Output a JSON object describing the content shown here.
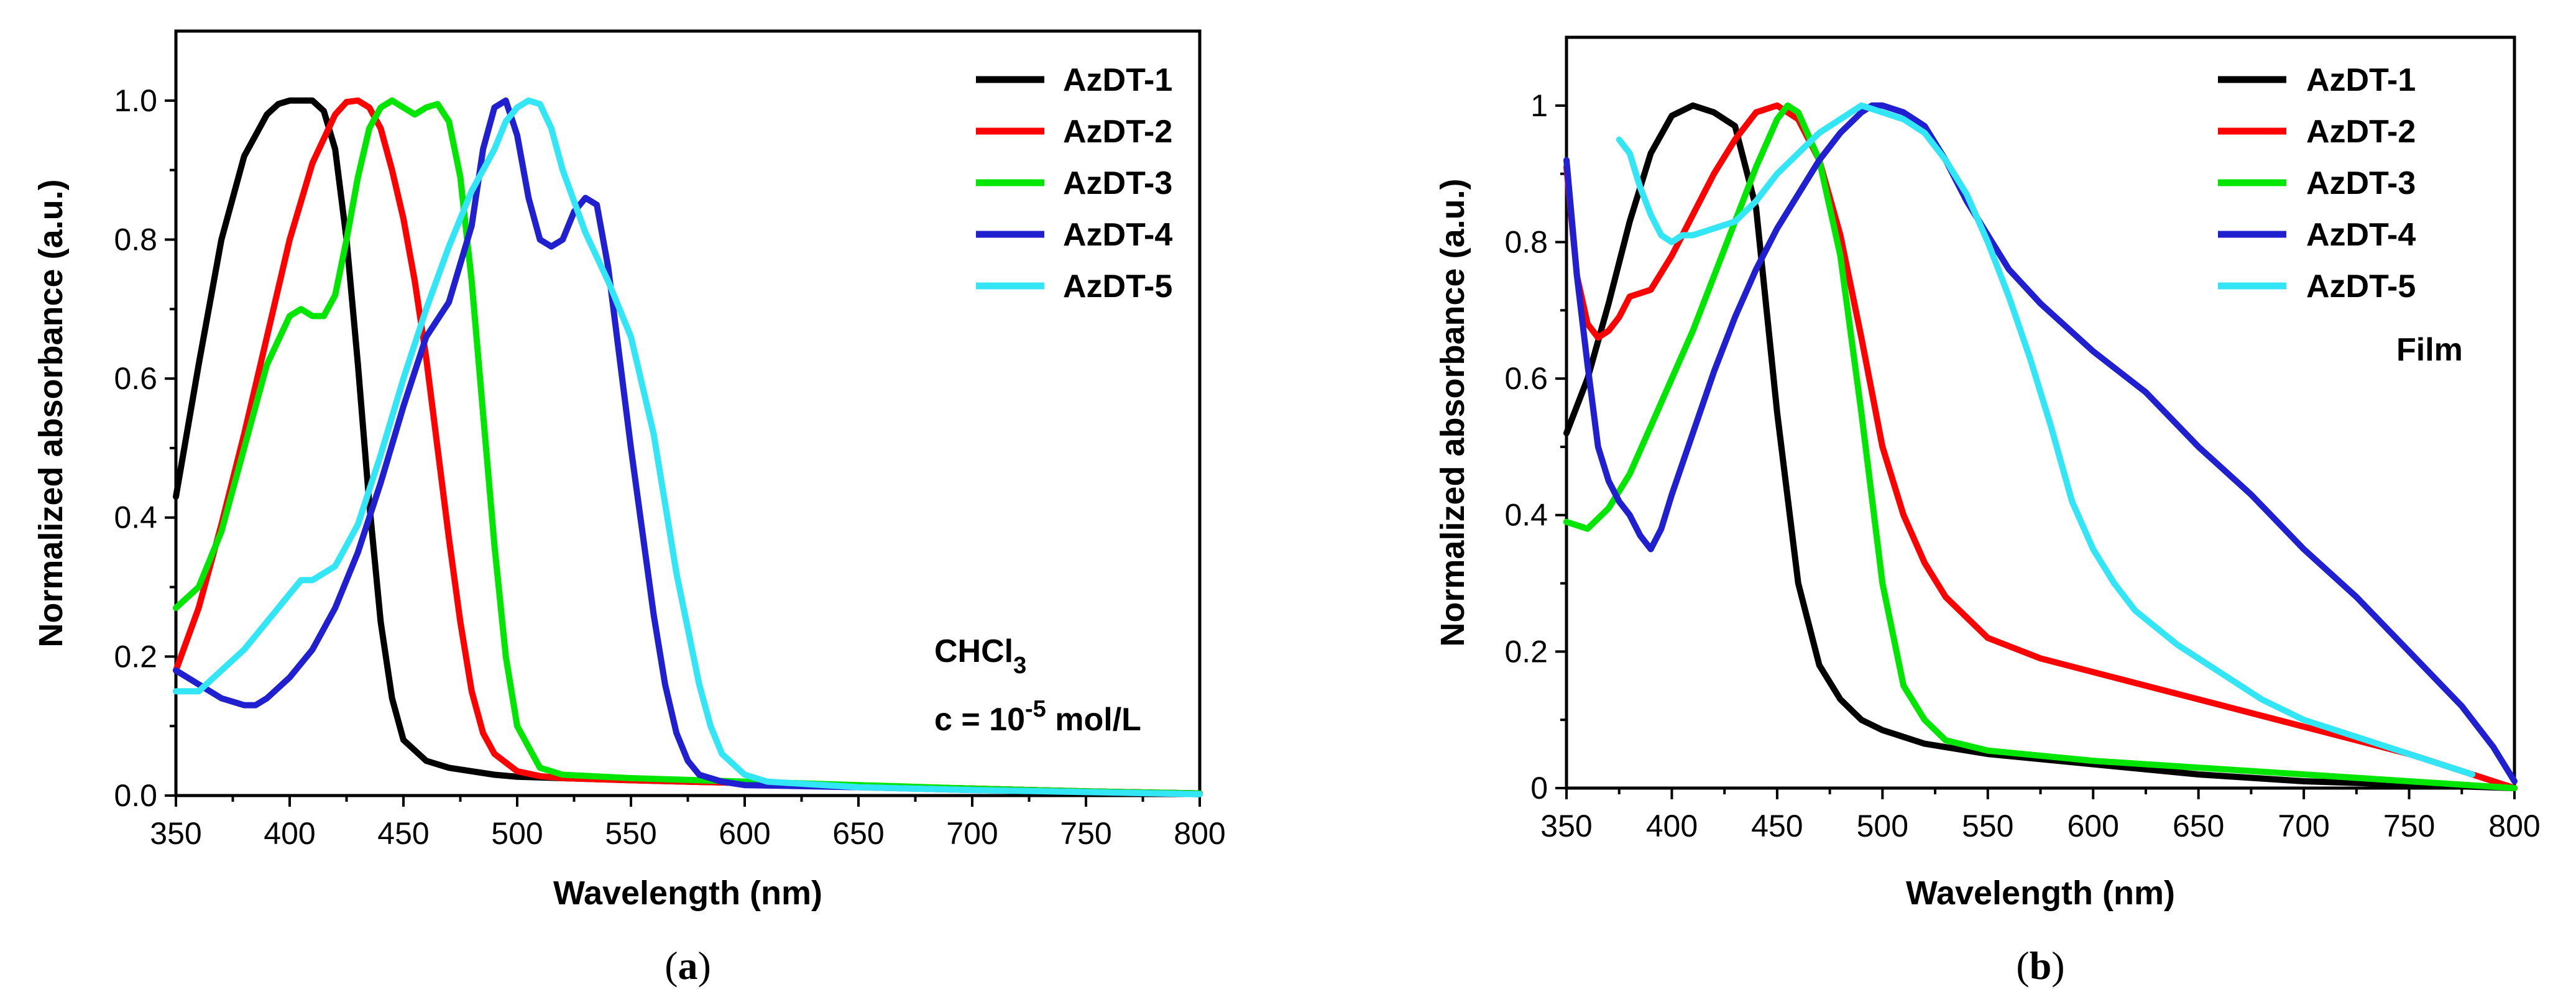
{
  "chart_data": [
    {
      "type": "line",
      "title": "",
      "xlabel": "Wavelength (nm)",
      "ylabel": "Normalized absorbance (a.u.)",
      "xlim": [
        350,
        800
      ],
      "ylim": [
        0,
        1.1
      ],
      "xticks": [
        "350",
        "400",
        "450",
        "500",
        "550",
        "600",
        "650",
        "700",
        "750",
        "800"
      ],
      "yticks": [
        "0.0",
        "0.2",
        "0.4",
        "0.6",
        "0.8",
        "1.0"
      ],
      "ytick_values": [
        0,
        0.2,
        0.4,
        0.6,
        0.8,
        1.0
      ],
      "legend_position": "top-right",
      "panel_label": {
        "open": "(",
        "letter": "a",
        "close": ")"
      },
      "annotation": {
        "solvent_main": "CHCl",
        "solvent_sub": "3",
        "conc_prefix": "c = 10",
        "conc_sup": "-5",
        "conc_suffix": " mol/L"
      },
      "series": [
        {
          "name": "AzDT-1",
          "color": "#000000",
          "x": [
            350,
            360,
            370,
            380,
            390,
            395,
            400,
            405,
            410,
            415,
            420,
            425,
            430,
            435,
            440,
            445,
            450,
            460,
            470,
            480,
            490,
            500,
            520,
            550,
            600,
            650,
            700,
            750,
            800
          ],
          "y": [
            0.43,
            0.62,
            0.8,
            0.92,
            0.98,
            0.995,
            1.0,
            1.0,
            1.0,
            0.985,
            0.93,
            0.8,
            0.62,
            0.42,
            0.25,
            0.14,
            0.08,
            0.05,
            0.04,
            0.035,
            0.03,
            0.027,
            0.025,
            0.022,
            0.018,
            0.014,
            0.01,
            0.006,
            0.003
          ]
        },
        {
          "name": "AzDT-2",
          "color": "#ff0000",
          "x": [
            350,
            360,
            370,
            380,
            390,
            400,
            410,
            420,
            425,
            430,
            435,
            440,
            445,
            450,
            455,
            460,
            465,
            470,
            475,
            480,
            485,
            490,
            500,
            510,
            520,
            550,
            600,
            650,
            700,
            750,
            800
          ],
          "y": [
            0.18,
            0.27,
            0.39,
            0.52,
            0.66,
            0.8,
            0.91,
            0.98,
            0.998,
            1.0,
            0.99,
            0.96,
            0.9,
            0.83,
            0.74,
            0.63,
            0.5,
            0.37,
            0.25,
            0.15,
            0.09,
            0.06,
            0.035,
            0.028,
            0.025,
            0.022,
            0.018,
            0.014,
            0.01,
            0.006,
            0.003
          ]
        },
        {
          "name": "AzDT-3",
          "color": "#00e600",
          "x": [
            350,
            360,
            370,
            380,
            390,
            400,
            405,
            410,
            415,
            420,
            425,
            430,
            435,
            440,
            445,
            450,
            455,
            460,
            465,
            470,
            475,
            480,
            485,
            490,
            495,
            500,
            510,
            520,
            550,
            600,
            650,
            700,
            750,
            800
          ],
          "y": [
            0.27,
            0.3,
            0.38,
            0.5,
            0.62,
            0.69,
            0.7,
            0.69,
            0.69,
            0.72,
            0.8,
            0.89,
            0.96,
            0.99,
            1.0,
            0.99,
            0.98,
            0.99,
            0.995,
            0.97,
            0.89,
            0.74,
            0.55,
            0.36,
            0.2,
            0.1,
            0.04,
            0.03,
            0.025,
            0.02,
            0.015,
            0.01,
            0.006,
            0.003
          ]
        },
        {
          "name": "AzDT-4",
          "color": "#2020d0",
          "x": [
            350,
            360,
            370,
            380,
            385,
            390,
            400,
            410,
            420,
            430,
            440,
            450,
            460,
            470,
            480,
            485,
            490,
            495,
            500,
            505,
            510,
            515,
            520,
            525,
            530,
            535,
            540,
            545,
            550,
            555,
            560,
            565,
            570,
            575,
            580,
            590,
            600,
            650,
            700,
            750,
            800
          ],
          "y": [
            0.18,
            0.16,
            0.14,
            0.13,
            0.13,
            0.14,
            0.17,
            0.21,
            0.27,
            0.35,
            0.45,
            0.56,
            0.66,
            0.71,
            0.82,
            0.93,
            0.99,
            1.0,
            0.95,
            0.86,
            0.8,
            0.79,
            0.8,
            0.84,
            0.86,
            0.85,
            0.76,
            0.63,
            0.5,
            0.38,
            0.26,
            0.16,
            0.09,
            0.05,
            0.03,
            0.02,
            0.015,
            0.012,
            0.008,
            0.005,
            0.002
          ]
        },
        {
          "name": "AzDT-5",
          "color": "#33e6f5",
          "x": [
            350,
            360,
            370,
            380,
            390,
            400,
            405,
            410,
            420,
            430,
            440,
            450,
            460,
            470,
            480,
            490,
            495,
            500,
            505,
            510,
            515,
            520,
            530,
            540,
            550,
            560,
            570,
            575,
            580,
            585,
            590,
            600,
            610,
            650,
            700,
            750,
            800
          ],
          "y": [
            0.15,
            0.15,
            0.18,
            0.21,
            0.25,
            0.29,
            0.31,
            0.31,
            0.33,
            0.39,
            0.49,
            0.6,
            0.7,
            0.79,
            0.87,
            0.93,
            0.97,
            0.99,
            1.0,
            0.995,
            0.96,
            0.9,
            0.81,
            0.74,
            0.66,
            0.52,
            0.32,
            0.24,
            0.16,
            0.1,
            0.06,
            0.03,
            0.02,
            0.012,
            0.008,
            0.005,
            0.002
          ]
        }
      ]
    },
    {
      "type": "line",
      "title": "",
      "xlabel": "Wavelength (nm)",
      "ylabel": "Normalized absorbance (a.u.)",
      "xlim": [
        350,
        800
      ],
      "ylim": [
        0,
        1.1
      ],
      "xticks": [
        "350",
        "400",
        "450",
        "500",
        "550",
        "600",
        "650",
        "700",
        "750",
        "800"
      ],
      "yticks": [
        "0",
        "0.2",
        "0.4",
        "0.6",
        "0.8",
        "1"
      ],
      "ytick_values": [
        0,
        0.2,
        0.4,
        0.6,
        0.8,
        1.0
      ],
      "legend_position": "top-right",
      "panel_label": {
        "open": "(",
        "letter": "b",
        "close": ")"
      },
      "annotation": {
        "film": "Film"
      },
      "series": [
        {
          "name": "AzDT-1",
          "color": "#000000",
          "x": [
            350,
            360,
            370,
            380,
            390,
            400,
            410,
            420,
            430,
            440,
            450,
            460,
            470,
            480,
            490,
            500,
            520,
            550,
            600,
            650,
            700,
            750,
            800
          ],
          "y": [
            0.52,
            0.6,
            0.71,
            0.83,
            0.93,
            0.985,
            1.0,
            0.99,
            0.97,
            0.85,
            0.55,
            0.3,
            0.18,
            0.13,
            0.1,
            0.085,
            0.065,
            0.05,
            0.035,
            0.02,
            0.01,
            0.005,
            0.0
          ]
        },
        {
          "name": "AzDT-2",
          "color": "#ff0000",
          "x": [
            350,
            355,
            360,
            365,
            370,
            375,
            380,
            390,
            400,
            410,
            420,
            430,
            440,
            450,
            460,
            470,
            480,
            490,
            500,
            510,
            520,
            530,
            540,
            550,
            575,
            600,
            650,
            700,
            750,
            780,
            800
          ],
          "y": [
            0.91,
            0.75,
            0.68,
            0.66,
            0.67,
            0.69,
            0.72,
            0.73,
            0.78,
            0.84,
            0.9,
            0.95,
            0.99,
            1.0,
            0.98,
            0.92,
            0.81,
            0.66,
            0.5,
            0.4,
            0.33,
            0.28,
            0.25,
            0.22,
            0.19,
            0.17,
            0.13,
            0.09,
            0.05,
            0.02,
            0.0
          ]
        },
        {
          "name": "AzDT-3",
          "color": "#00e600",
          "x": [
            350,
            360,
            370,
            380,
            390,
            400,
            410,
            420,
            430,
            440,
            450,
            455,
            460,
            470,
            480,
            490,
            500,
            510,
            520,
            530,
            550,
            600,
            650,
            700,
            750,
            800
          ],
          "y": [
            0.39,
            0.38,
            0.41,
            0.46,
            0.53,
            0.6,
            0.67,
            0.75,
            0.83,
            0.91,
            0.98,
            1.0,
            0.99,
            0.92,
            0.78,
            0.55,
            0.3,
            0.15,
            0.1,
            0.07,
            0.055,
            0.04,
            0.03,
            0.02,
            0.01,
            0.0
          ]
        },
        {
          "name": "AzDT-4",
          "color": "#2020d0",
          "x": [
            350,
            355,
            360,
            365,
            370,
            375,
            380,
            385,
            390,
            395,
            400,
            410,
            420,
            430,
            440,
            450,
            460,
            470,
            480,
            490,
            495,
            500,
            510,
            520,
            530,
            540,
            550,
            560,
            575,
            600,
            625,
            650,
            675,
            700,
            725,
            750,
            775,
            790,
            800
          ],
          "y": [
            0.92,
            0.75,
            0.62,
            0.5,
            0.45,
            0.42,
            0.4,
            0.37,
            0.35,
            0.38,
            0.43,
            0.52,
            0.61,
            0.69,
            0.76,
            0.82,
            0.87,
            0.92,
            0.96,
            0.99,
            1.0,
            1.0,
            0.99,
            0.97,
            0.92,
            0.86,
            0.81,
            0.76,
            0.71,
            0.64,
            0.58,
            0.5,
            0.43,
            0.35,
            0.28,
            0.2,
            0.12,
            0.06,
            0.01
          ]
        },
        {
          "name": "AzDT-5",
          "color": "#33e6f5",
          "x": [
            375,
            380,
            385,
            390,
            395,
            400,
            405,
            410,
            420,
            430,
            440,
            450,
            460,
            470,
            480,
            490,
            500,
            510,
            520,
            530,
            540,
            550,
            560,
            570,
            580,
            590,
            600,
            610,
            620,
            640,
            660,
            680,
            700,
            720,
            740,
            760,
            780
          ],
          "y": [
            0.95,
            0.93,
            0.88,
            0.84,
            0.81,
            0.8,
            0.81,
            0.81,
            0.82,
            0.83,
            0.86,
            0.9,
            0.93,
            0.96,
            0.98,
            1.0,
            0.99,
            0.98,
            0.96,
            0.92,
            0.87,
            0.8,
            0.72,
            0.63,
            0.53,
            0.42,
            0.35,
            0.3,
            0.26,
            0.21,
            0.17,
            0.13,
            0.1,
            0.08,
            0.06,
            0.04,
            0.02
          ]
        }
      ]
    }
  ]
}
